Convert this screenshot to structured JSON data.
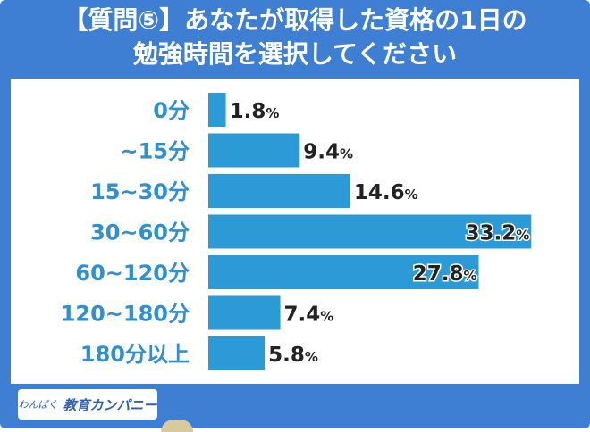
{
  "title_line1": "【質問⑤】あなたが取得した資格の1日の",
  "title_line2": "勉強時間を選択してください",
  "logo": {
    "small": "わんぱく",
    "big": "教育カンパニー"
  },
  "colors": {
    "frame": "#3f7fd3",
    "bar": "#2b9ad6",
    "category_text": "#2f8fd0",
    "value_text": "#222222"
  },
  "chart_data": {
    "type": "bar",
    "orientation": "horizontal",
    "categories": [
      "0分",
      "~15分",
      "15~30分",
      "30~60分",
      "60~120分",
      "120~180分",
      "180分以上"
    ],
    "values": [
      1.8,
      9.4,
      14.6,
      33.2,
      27.8,
      7.4,
      5.8
    ],
    "value_labels": [
      "1.8",
      "9.4",
      "14.6",
      "33.2",
      "27.8",
      "7.4",
      "5.8"
    ],
    "unit": "%",
    "xlim": [
      0,
      34
    ],
    "title": "【質問⑤】あなたが取得した資格の1日の勉強時間を選択してください"
  }
}
